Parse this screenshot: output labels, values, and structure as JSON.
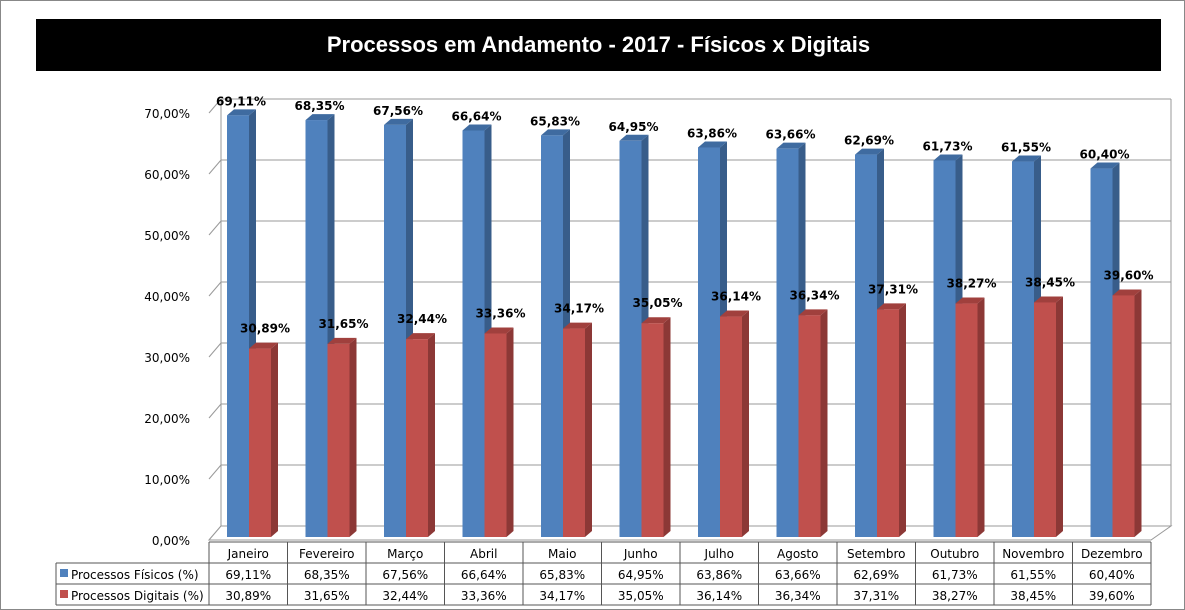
{
  "chart_data": {
    "type": "bar",
    "title": "Processos em Andamento - 2017 - Físicos x Digitais",
    "categories": [
      "Janeiro",
      "Fevereiro",
      "Março",
      "Abril",
      "Maio",
      "Junho",
      "Julho",
      "Agosto",
      "Setembro",
      "Outubro",
      "Novembro",
      "Dezembro"
    ],
    "series": [
      {
        "name": "Processos Físicos (%)",
        "color": "#4F81BD",
        "values": [
          69.11,
          68.35,
          67.56,
          66.64,
          65.83,
          64.95,
          63.86,
          63.66,
          62.69,
          61.73,
          61.55,
          60.4
        ],
        "labels": [
          "69,11%",
          "68,35%",
          "67,56%",
          "66,64%",
          "65,83%",
          "64,95%",
          "63,86%",
          "63,66%",
          "62,69%",
          "61,73%",
          "61,55%",
          "60,40%"
        ]
      },
      {
        "name": "Processos Digitais (%)",
        "color": "#C0504D",
        "values": [
          30.89,
          31.65,
          32.44,
          33.36,
          34.17,
          35.05,
          36.14,
          36.34,
          37.31,
          38.27,
          38.45,
          39.6
        ],
        "labels": [
          "30,89%",
          "31,65%",
          "32,44%",
          "33,36%",
          "34,17%",
          "35,05%",
          "36,14%",
          "36,34%",
          "37,31%",
          "38,27%",
          "38,45%",
          "39,60%"
        ]
      }
    ],
    "ylim": [
      0,
      70
    ],
    "yticks": [
      "0,00%",
      "10,00%",
      "20,00%",
      "30,00%",
      "40,00%",
      "50,00%",
      "60,00%",
      "70,00%"
    ],
    "grid": true,
    "legend": "data table below chart",
    "style": "3d clustered column"
  }
}
